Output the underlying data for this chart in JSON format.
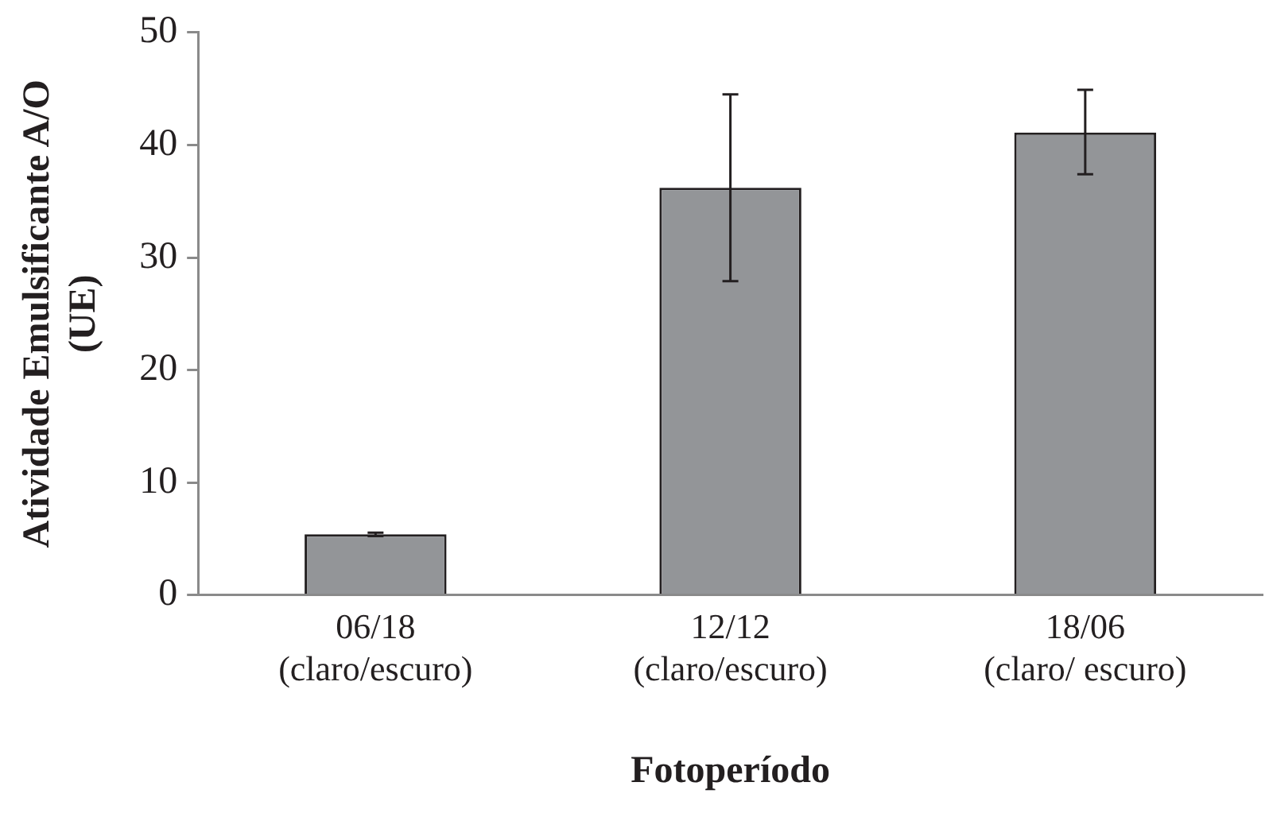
{
  "chart_data": {
    "type": "bar",
    "xlabel": "Fotoperíodo",
    "ylabel": "Atividade Emulsificante A/O\n(UE)",
    "categories": [
      "06/18\n(claro/escuro)",
      "12/12\n(claro/escuro)",
      "18/06\n(claro/ escuro)"
    ],
    "values": [
      5.4,
      36.2,
      41.1
    ],
    "errors": [
      0.15,
      [
        27.9,
        44.5
      ],
      [
        37.4,
        44.9
      ]
    ],
    "color": "#939598",
    "ylim": [
      0,
      50
    ],
    "yticks": [
      0,
      10,
      20,
      30,
      40,
      50
    ],
    "grid": false,
    "legend": false
  }
}
